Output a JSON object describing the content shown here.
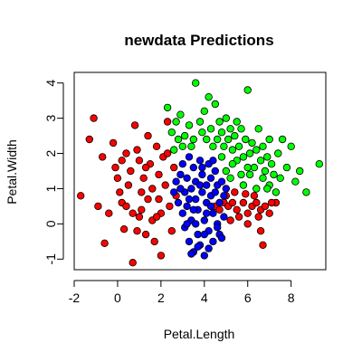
{
  "chart_data": {
    "type": "scatter",
    "title": "newdata Predictions",
    "xlabel": "Petal.Length",
    "ylabel": "Petal.Width",
    "xlim": [
      -2,
      9.6
    ],
    "ylim": [
      -1.3,
      4.3
    ],
    "x_ticks": [
      -2,
      0,
      2,
      4,
      6,
      8
    ],
    "y_ticks": [
      -1,
      0,
      1,
      2,
      3,
      4
    ],
    "x_tick_labels": [
      "-2",
      "0",
      "2",
      "4",
      "6",
      "8"
    ],
    "y_tick_labels": [
      "-1",
      "0",
      "1",
      "2",
      "3",
      "4"
    ],
    "grid": false,
    "legend": "none",
    "marker": "filled circle with black outline",
    "series": [
      {
        "color": "#ff0000",
        "points": [
          [
            -1.7,
            0.8
          ],
          [
            -1.1,
            3.0
          ],
          [
            -1.3,
            2.4
          ],
          [
            -0.7,
            1.9
          ],
          [
            -0.6,
            -0.55
          ],
          [
            -0.2,
            2.3
          ],
          [
            -0.1,
            1.6
          ],
          [
            0.0,
            1.3
          ],
          [
            0.1,
            0.9
          ],
          [
            0.2,
            0.6
          ],
          [
            0.3,
            -0.15
          ],
          [
            0.4,
            2.0
          ],
          [
            0.5,
            1.1
          ],
          [
            0.6,
            1.5
          ],
          [
            0.7,
            0.3
          ],
          [
            0.7,
            -1.1
          ],
          [
            0.8,
            2.8
          ],
          [
            0.9,
            2.1
          ],
          [
            1.0,
            1.8
          ],
          [
            1.1,
            0.9
          ],
          [
            1.1,
            0.4
          ],
          [
            1.2,
            1.3
          ],
          [
            1.3,
            -0.3
          ],
          [
            1.4,
            2.5
          ],
          [
            1.5,
            1.7
          ],
          [
            1.6,
            1.0
          ],
          [
            1.6,
            0.1
          ],
          [
            1.7,
            -0.5
          ],
          [
            1.8,
            2.2
          ],
          [
            1.9,
            1.4
          ],
          [
            1.9,
            0.7
          ],
          [
            2.0,
            0.3
          ],
          [
            2.0,
            -0.9
          ],
          [
            2.1,
            1.9
          ],
          [
            2.2,
            1.1
          ],
          [
            2.3,
            2.9
          ],
          [
            2.3,
            2.0
          ],
          [
            2.4,
            0.5
          ],
          [
            2.5,
            -0.2
          ],
          [
            2.6,
            1.6
          ],
          [
            2.7,
            0.8
          ],
          [
            -0.9,
            0.5
          ],
          [
            -0.4,
            0.3
          ],
          [
            0.2,
            1.8
          ],
          [
            0.9,
            -0.2
          ],
          [
            1.4,
            0.7
          ],
          [
            0.4,
            0.5
          ],
          [
            1.0,
            0.2
          ],
          [
            1.8,
            0.2
          ],
          [
            1.3,
            1.6
          ],
          [
            4.5,
            0.5
          ],
          [
            4.7,
            0.4
          ],
          [
            4.9,
            0.6
          ],
          [
            5.1,
            0.5
          ],
          [
            5.3,
            0.6
          ],
          [
            5.5,
            0.4
          ],
          [
            5.8,
            0.6
          ],
          [
            6.0,
            0.3
          ],
          [
            6.2,
            0.5
          ],
          [
            6.4,
            0.6
          ],
          [
            6.6,
            0.4
          ],
          [
            6.8,
            0.5
          ],
          [
            5.2,
            0.1
          ],
          [
            5.6,
            0.2
          ],
          [
            6.0,
            0.0
          ],
          [
            6.6,
            -0.2
          ],
          [
            6.3,
            0.8
          ],
          [
            7.0,
            0.3
          ],
          [
            6.7,
            -0.6
          ],
          [
            7.3,
            0.6
          ],
          [
            5.0,
            0.8
          ],
          [
            5.4,
            0.9
          ],
          [
            5.9,
            0.85
          ],
          [
            6.5,
            0.2
          ],
          [
            7.1,
            0.6
          ]
        ]
      },
      {
        "color": "#00ff00",
        "points": [
          [
            2.3,
            3.3
          ],
          [
            2.5,
            2.6
          ],
          [
            2.7,
            2.9
          ],
          [
            2.8,
            2.4
          ],
          [
            2.9,
            3.1
          ],
          [
            3.1,
            2.5
          ],
          [
            3.3,
            2.8
          ],
          [
            3.5,
            2.4
          ],
          [
            3.6,
            4.0
          ],
          [
            3.8,
            2.9
          ],
          [
            3.9,
            2.6
          ],
          [
            4.0,
            3.2
          ],
          [
            4.1,
            2.4
          ],
          [
            4.2,
            3.6
          ],
          [
            4.3,
            2.7
          ],
          [
            4.5,
            3.4
          ],
          [
            4.6,
            2.4
          ],
          [
            4.7,
            2.9
          ],
          [
            4.8,
            2.6
          ],
          [
            5.0,
            3.0
          ],
          [
            5.1,
            2.4
          ],
          [
            5.2,
            2.7
          ],
          [
            5.3,
            2.1
          ],
          [
            5.4,
            2.5
          ],
          [
            5.5,
            2.9
          ],
          [
            5.6,
            2.2
          ],
          [
            5.7,
            2.7
          ],
          [
            5.8,
            1.9
          ],
          [
            5.9,
            2.4
          ],
          [
            6.0,
            3.8
          ],
          [
            6.1,
            2.0
          ],
          [
            6.2,
            2.3
          ],
          [
            6.3,
            1.6
          ],
          [
            6.4,
            2.1
          ],
          [
            6.5,
            2.7
          ],
          [
            6.6,
            1.8
          ],
          [
            6.7,
            2.2
          ],
          [
            6.8,
            1.5
          ],
          [
            6.9,
            1.9
          ],
          [
            7.0,
            2.4
          ],
          [
            7.1,
            1.7
          ],
          [
            7.2,
            1.4
          ],
          [
            7.4,
            2.0
          ],
          [
            7.6,
            2.4
          ],
          [
            7.8,
            1.6
          ],
          [
            8.0,
            2.2
          ],
          [
            8.2,
            1.2
          ],
          [
            8.4,
            1.5
          ],
          [
            9.3,
            1.7
          ],
          [
            8.7,
            0.9
          ],
          [
            5.0,
            1.5
          ],
          [
            5.2,
            1.3
          ],
          [
            5.5,
            1.8
          ],
          [
            5.8,
            1.1
          ],
          [
            6.1,
            1.4
          ],
          [
            6.4,
            1.0
          ],
          [
            6.7,
            1.3
          ],
          [
            7.0,
            1.1
          ],
          [
            7.3,
            0.9
          ],
          [
            4.8,
            1.9
          ],
          [
            5.3,
            1.7
          ],
          [
            6.0,
            1.6
          ],
          [
            6.9,
            1.0
          ],
          [
            7.5,
            1.3
          ],
          [
            2.6,
            2.1
          ],
          [
            3.0,
            2.2
          ],
          [
            3.4,
            2.2
          ],
          [
            4.4,
            2.2
          ],
          [
            4.9,
            2.2
          ],
          [
            5.7,
            1.4
          ]
        ]
      },
      {
        "color": "#0000ff",
        "points": [
          [
            2.6,
            0.9
          ],
          [
            2.7,
            1.2
          ],
          [
            2.8,
            0.6
          ],
          [
            2.9,
            1.4
          ],
          [
            3.0,
            0.3
          ],
          [
            3.0,
            1.7
          ],
          [
            3.1,
            0.9
          ],
          [
            3.1,
            -0.1
          ],
          [
            3.2,
            1.3
          ],
          [
            3.2,
            0.5
          ],
          [
            3.3,
            1.9
          ],
          [
            3.3,
            -0.5
          ],
          [
            3.4,
            1.0
          ],
          [
            3.4,
            0.1
          ],
          [
            3.5,
            1.6
          ],
          [
            3.5,
            -0.8
          ],
          [
            3.6,
            0.7
          ],
          [
            3.6,
            1.2
          ],
          [
            3.7,
            -0.3
          ],
          [
            3.7,
            0.4
          ],
          [
            3.8,
            1.8
          ],
          [
            3.8,
            -0.6
          ],
          [
            3.9,
            0.9
          ],
          [
            3.9,
            1.4
          ],
          [
            4.0,
            0.1
          ],
          [
            4.0,
            -0.9
          ],
          [
            4.1,
            1.1
          ],
          [
            4.1,
            0.6
          ],
          [
            4.2,
            1.7
          ],
          [
            4.2,
            -0.2
          ],
          [
            4.3,
            0.8
          ],
          [
            4.3,
            1.3
          ],
          [
            4.4,
            0.3
          ],
          [
            4.4,
            -0.5
          ],
          [
            4.5,
            1.5
          ],
          [
            4.5,
            0.9
          ],
          [
            4.6,
            0.0
          ],
          [
            4.6,
            1.1
          ],
          [
            4.7,
            -0.3
          ],
          [
            4.7,
            0.6
          ],
          [
            4.8,
            1.2
          ],
          [
            4.8,
            -0.4
          ],
          [
            4.9,
            0.8
          ],
          [
            4.9,
            0.2
          ],
          [
            5.0,
            1.0
          ],
          [
            3.4,
            -0.85
          ],
          [
            3.7,
            -0.65
          ],
          [
            4.0,
            -0.3
          ],
          [
            3.5,
            0.4
          ],
          [
            3.9,
            1.6
          ],
          [
            4.4,
            1.8
          ],
          [
            2.9,
            1.0
          ],
          [
            3.2,
            0.0
          ],
          [
            4.2,
            -0.7
          ],
          [
            4.6,
            -0.1
          ],
          [
            3.6,
            0.0
          ],
          [
            4.1,
            0.3
          ],
          [
            3.3,
            0.7
          ],
          [
            3.8,
            1.1
          ],
          [
            4.3,
            0.5
          ]
        ]
      }
    ]
  }
}
